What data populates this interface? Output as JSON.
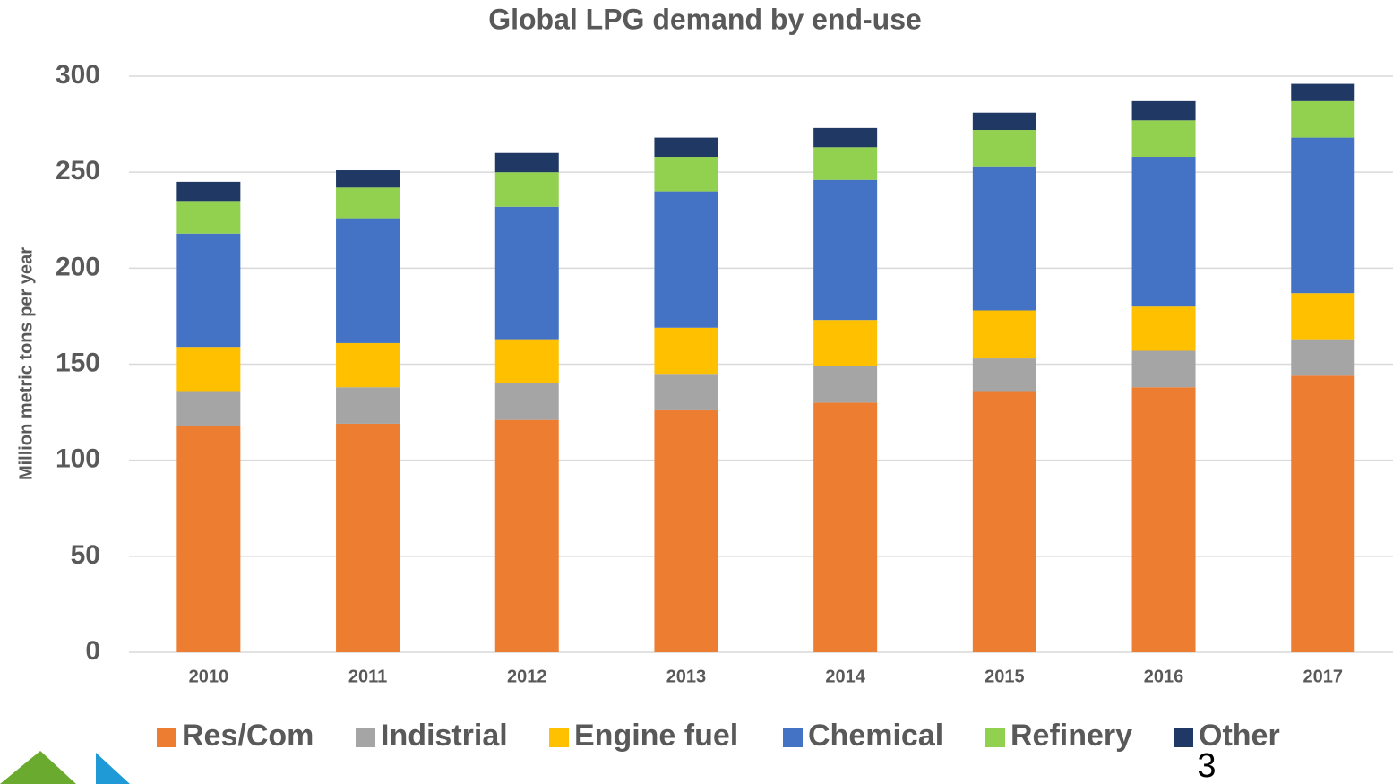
{
  "chart_data": {
    "type": "stacked_bar",
    "title": "Global LPG demand by end-use",
    "y_label": "Million metric tons per year",
    "categories": [
      "2010",
      "2011",
      "2012",
      "2013",
      "2014",
      "2015",
      "2016",
      "2017"
    ],
    "series": [
      {
        "name": "Res/Com",
        "color": "#ed7d31",
        "values": [
          118,
          119,
          121,
          126,
          130,
          136,
          138,
          144
        ]
      },
      {
        "name": "Indistrial",
        "color": "#a5a5a5",
        "values": [
          18,
          19,
          19,
          19,
          19,
          17,
          19,
          19
        ]
      },
      {
        "name": "Engine fuel",
        "color": "#ffc000",
        "values": [
          23,
          23,
          23,
          24,
          24,
          25,
          23,
          24
        ]
      },
      {
        "name": "Chemical",
        "color": "#4472c4",
        "values": [
          59,
          65,
          69,
          71,
          73,
          75,
          78,
          81
        ]
      },
      {
        "name": "Refinery",
        "color": "#92d050",
        "values": [
          17,
          16,
          18,
          18,
          17,
          19,
          19,
          19
        ]
      },
      {
        "name": "Other",
        "color": "#203864",
        "values": [
          10,
          9,
          10,
          10,
          10,
          9,
          10,
          9
        ]
      }
    ],
    "ylim": [
      0,
      300
    ],
    "yticks": [
      0,
      50,
      100,
      150,
      200,
      250,
      300
    ],
    "grid": true,
    "legend": "bottom"
  },
  "page_number": "3"
}
